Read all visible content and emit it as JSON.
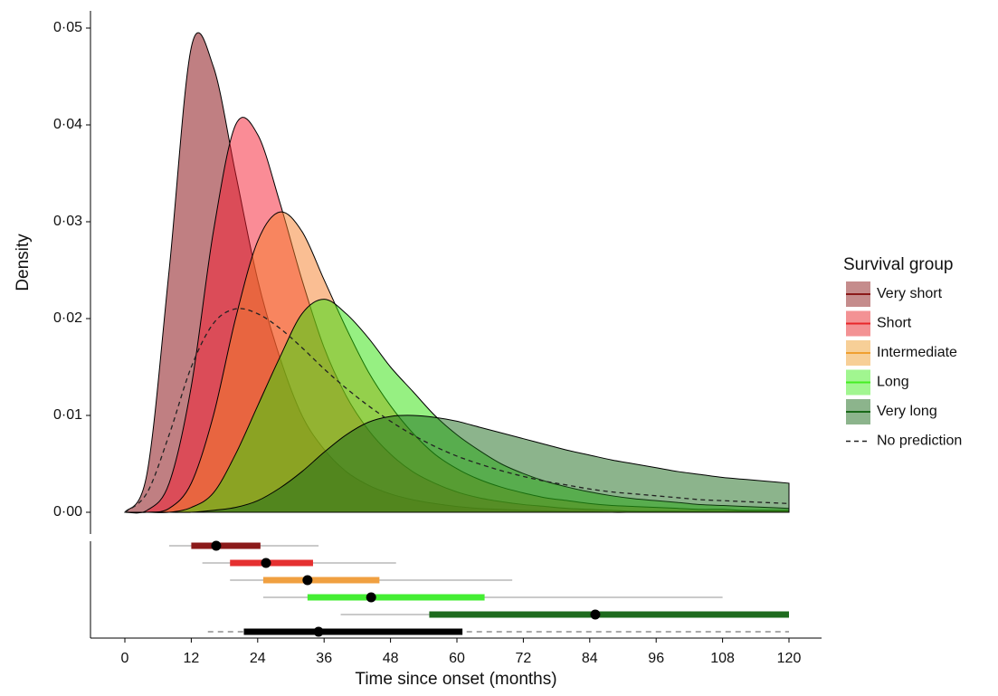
{
  "chart_data": [
    {
      "type": "area",
      "ylabel": "Density",
      "xlim": [
        0,
        120
      ],
      "ylim": [
        0,
        0.05
      ],
      "yticks": [
        {
          "value": 0,
          "label": "0·00"
        },
        {
          "value": 0.01,
          "label": "0·01"
        },
        {
          "value": 0.02,
          "label": "0·02"
        },
        {
          "value": 0.03,
          "label": "0·03"
        },
        {
          "value": 0.04,
          "label": "0·04"
        },
        {
          "value": 0.05,
          "label": "0·05"
        }
      ],
      "legend_title": "Survival group",
      "legend": "right",
      "x": [
        0,
        4,
        8,
        12,
        16,
        20,
        24,
        28,
        32,
        36,
        40,
        44,
        48,
        52,
        56,
        60,
        64,
        68,
        72,
        76,
        80,
        84,
        88,
        92,
        96,
        100,
        104,
        108,
        112,
        116,
        120
      ],
      "series": [
        {
          "name": "Very short",
          "color": "#810005",
          "key_color": "#8b1a1a",
          "fill": true,
          "values": [
            0,
            0.004,
            0.025,
            0.048,
            0.046,
            0.035,
            0.024,
            0.016,
            0.01,
            0.0065,
            0.0042,
            0.0028,
            0.0019,
            0.0013,
            0.0009,
            0.0006,
            0.0004,
            0.0003,
            0.0002,
            0.00015,
            0.0001,
            0.0001,
            0,
            0,
            0,
            0,
            0,
            0,
            0,
            0,
            0
          ]
        },
        {
          "name": "Short",
          "color": "#f5192d",
          "key_color": "#e8262a",
          "fill": true,
          "values": [
            0,
            0.0002,
            0.003,
            0.013,
            0.029,
            0.04,
            0.039,
            0.032,
            0.024,
            0.017,
            0.012,
            0.0085,
            0.006,
            0.0042,
            0.003,
            0.0021,
            0.0015,
            0.0011,
            0.0008,
            0.0006,
            0.0004,
            0.0003,
            0.0002,
            0.0001,
            0.0001,
            0.0001,
            0.0001,
            0.0001,
            0.0001,
            0.0001,
            0.0001
          ]
        },
        {
          "name": "Intermediate",
          "color": "#f57d28",
          "key_color": "#f0a030",
          "fill": true,
          "values": [
            0,
            0,
            0.0004,
            0.003,
            0.01,
            0.02,
            0.028,
            0.031,
            0.029,
            0.024,
            0.019,
            0.0145,
            0.011,
            0.0082,
            0.006,
            0.0045,
            0.0034,
            0.0026,
            0.002,
            0.0015,
            0.0012,
            0.0009,
            0.0007,
            0.0006,
            0.0005,
            0.0004,
            0.0003,
            0.0003,
            0.0002,
            0.0002,
            0.0002
          ]
        },
        {
          "name": "Long",
          "color": "#2de105",
          "key_color": "#44ee22",
          "fill": true,
          "values": [
            0,
            0,
            0,
            0.0005,
            0.002,
            0.006,
            0.011,
            0.016,
            0.0205,
            0.022,
            0.0205,
            0.018,
            0.015,
            0.0125,
            0.01,
            0.008,
            0.0064,
            0.005,
            0.004,
            0.0032,
            0.0026,
            0.0021,
            0.0017,
            0.0014,
            0.0012,
            0.001,
            0.0008,
            0.0007,
            0.0006,
            0.0005,
            0.0004
          ]
        },
        {
          "name": "Very long",
          "color": "#196919",
          "key_color": "#1a6a1a",
          "fill": true,
          "values": [
            0,
            0,
            0,
            0,
            0.0002,
            0.0005,
            0.0012,
            0.0025,
            0.0042,
            0.0062,
            0.008,
            0.0093,
            0.0099,
            0.01,
            0.0098,
            0.0094,
            0.0088,
            0.0082,
            0.0076,
            0.007,
            0.0064,
            0.0059,
            0.0054,
            0.005,
            0.0046,
            0.0042,
            0.0039,
            0.0036,
            0.0034,
            0.0032,
            0.003
          ]
        },
        {
          "name": "No prediction",
          "color": "#222222",
          "key_color": "#222222",
          "fill": false,
          "dashed": true,
          "values": [
            0,
            0.002,
            0.008,
            0.015,
            0.0195,
            0.021,
            0.0205,
            0.019,
            0.017,
            0.0148,
            0.0128,
            0.011,
            0.0094,
            0.008,
            0.0068,
            0.0058,
            0.005,
            0.0043,
            0.0037,
            0.0032,
            0.0028,
            0.0024,
            0.0021,
            0.0019,
            0.0017,
            0.0015,
            0.0013,
            0.0012,
            0.0011,
            0.001,
            0.0009
          ]
        }
      ]
    },
    {
      "type": "interval",
      "xlabel": "Time since onset (months)",
      "xlim": [
        0,
        120
      ],
      "xticks": [
        0,
        12,
        24,
        36,
        48,
        60,
        72,
        84,
        96,
        108,
        120
      ],
      "whisker_color": "#aaaaaa",
      "rows": [
        {
          "color": "#8b1a1a",
          "median": 16.5,
          "inner": [
            12,
            24.5
          ],
          "outer": [
            8,
            35
          ]
        },
        {
          "color": "#e53030",
          "median": 25.5,
          "inner": [
            19,
            34
          ],
          "outer": [
            14,
            49
          ]
        },
        {
          "color": "#f0a040",
          "median": 33,
          "inner": [
            25,
            46
          ],
          "outer": [
            19,
            70
          ]
        },
        {
          "color": "#44ee33",
          "median": 44.5,
          "inner": [
            33,
            65
          ],
          "outer": [
            25,
            108
          ]
        },
        {
          "color": "#1e6b1e",
          "median": 85,
          "inner": [
            55,
            120
          ],
          "outer": [
            39,
            120
          ]
        },
        {
          "color": "#000000",
          "median": 35,
          "inner": [
            21.5,
            61
          ],
          "outer": [
            15,
            120
          ],
          "dashed": true
        }
      ]
    }
  ]
}
